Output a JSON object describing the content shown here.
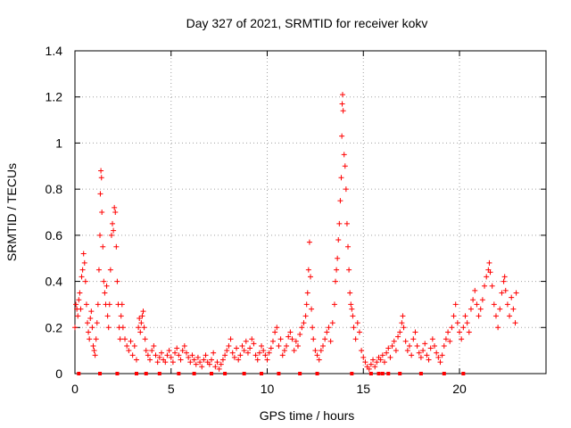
{
  "chart_data": {
    "type": "scatter",
    "title": "Day 327 of 2021, SRMTID for receiver kokv",
    "xlabel": "GPS time / hours",
    "ylabel": "SRMTID / TECUs",
    "xlim": [
      0,
      24.5
    ],
    "ylim": [
      0,
      1.4
    ],
    "xticks": [
      0,
      5,
      10,
      15,
      20
    ],
    "xtick_labels": [
      "0",
      "5",
      "10",
      "15",
      "20"
    ],
    "yticks": [
      0,
      0.2,
      0.4,
      0.6,
      0.8,
      1.0,
      1.2,
      1.4
    ],
    "ytick_labels": [
      "0",
      "0.2",
      "0.4",
      "0.6",
      "0.8",
      "1",
      "1.2",
      "1.4"
    ],
    "grid": true,
    "legend": "none",
    "marker": "plus",
    "color": "#ff0000",
    "series": [
      {
        "name": "SRMTID",
        "points": [
          [
            0.0,
            0.2
          ],
          [
            0.05,
            0.3
          ],
          [
            0.1,
            0.28
          ],
          [
            0.15,
            0.25
          ],
          [
            0.2,
            0.32
          ],
          [
            0.25,
            0.35
          ],
          [
            0.3,
            0.28
          ],
          [
            0.35,
            0.42
          ],
          [
            0.4,
            0.45
          ],
          [
            0.45,
            0.52
          ],
          [
            0.5,
            0.48
          ],
          [
            0.55,
            0.4
          ],
          [
            0.6,
            0.3
          ],
          [
            0.65,
            0.22
          ],
          [
            0.7,
            0.18
          ],
          [
            0.75,
            0.15
          ],
          [
            0.8,
            0.24
          ],
          [
            0.85,
            0.27
          ],
          [
            0.9,
            0.2
          ],
          [
            0.95,
            0.12
          ],
          [
            1.0,
            0.1
          ],
          [
            1.05,
            0.08
          ],
          [
            1.1,
            0.15
          ],
          [
            1.15,
            0.22
          ],
          [
            1.2,
            0.3
          ],
          [
            1.25,
            0.45
          ],
          [
            1.3,
            0.6
          ],
          [
            1.32,
            0.78
          ],
          [
            1.35,
            0.88
          ],
          [
            1.38,
            0.85
          ],
          [
            1.4,
            0.7
          ],
          [
            1.45,
            0.55
          ],
          [
            1.5,
            0.4
          ],
          [
            1.55,
            0.35
          ],
          [
            1.6,
            0.3
          ],
          [
            1.65,
            0.38
          ],
          [
            1.7,
            0.25
          ],
          [
            1.75,
            0.2
          ],
          [
            1.8,
            0.3
          ],
          [
            1.85,
            0.45
          ],
          [
            1.9,
            0.6
          ],
          [
            1.95,
            0.65
          ],
          [
            2.0,
            0.62
          ],
          [
            2.05,
            0.72
          ],
          [
            2.1,
            0.7
          ],
          [
            2.15,
            0.55
          ],
          [
            2.2,
            0.4
          ],
          [
            2.25,
            0.3
          ],
          [
            2.3,
            0.2
          ],
          [
            2.35,
            0.15
          ],
          [
            2.4,
            0.25
          ],
          [
            2.45,
            0.3
          ],
          [
            2.5,
            0.2
          ],
          [
            2.6,
            0.15
          ],
          [
            2.7,
            0.12
          ],
          [
            2.8,
            0.1
          ],
          [
            2.9,
            0.14
          ],
          [
            3.0,
            0.08
          ],
          [
            3.1,
            0.12
          ],
          [
            3.2,
            0.06
          ],
          [
            3.3,
            0.2
          ],
          [
            3.35,
            0.24
          ],
          [
            3.4,
            0.18
          ],
          [
            3.45,
            0.22
          ],
          [
            3.5,
            0.25
          ],
          [
            3.55,
            0.27
          ],
          [
            3.6,
            0.2
          ],
          [
            3.65,
            0.15
          ],
          [
            3.7,
            0.1
          ],
          [
            3.8,
            0.08
          ],
          [
            3.9,
            0.06
          ],
          [
            4.0,
            0.1
          ],
          [
            4.1,
            0.12
          ],
          [
            4.2,
            0.08
          ],
          [
            4.3,
            0.05
          ],
          [
            4.4,
            0.07
          ],
          [
            4.5,
            0.09
          ],
          [
            4.6,
            0.06
          ],
          [
            4.7,
            0.05
          ],
          [
            4.8,
            0.08
          ],
          [
            4.9,
            0.1
          ],
          [
            5.0,
            0.07
          ],
          [
            5.1,
            0.05
          ],
          [
            5.2,
            0.09
          ],
          [
            5.3,
            0.11
          ],
          [
            5.4,
            0.08
          ],
          [
            5.5,
            0.06
          ],
          [
            5.6,
            0.1
          ],
          [
            5.7,
            0.12
          ],
          [
            5.8,
            0.09
          ],
          [
            5.9,
            0.07
          ],
          [
            6.0,
            0.05
          ],
          [
            6.1,
            0.08
          ],
          [
            6.2,
            0.06
          ],
          [
            6.3,
            0.04
          ],
          [
            6.4,
            0.07
          ],
          [
            6.5,
            0.05
          ],
          [
            6.6,
            0.03
          ],
          [
            6.7,
            0.06
          ],
          [
            6.8,
            0.08
          ],
          [
            6.9,
            0.05
          ],
          [
            7.0,
            0.04
          ],
          [
            7.1,
            0.06
          ],
          [
            7.2,
            0.09
          ],
          [
            7.3,
            0.03
          ],
          [
            7.4,
            0.05
          ],
          [
            7.5,
            0.02
          ],
          [
            7.6,
            0.04
          ],
          [
            7.7,
            0.06
          ],
          [
            7.8,
            0.08
          ],
          [
            7.9,
            0.1
          ],
          [
            8.0,
            0.12
          ],
          [
            8.1,
            0.15
          ],
          [
            8.2,
            0.09
          ],
          [
            8.3,
            0.07
          ],
          [
            8.4,
            0.11
          ],
          [
            8.5,
            0.06
          ],
          [
            8.6,
            0.08
          ],
          [
            8.7,
            0.12
          ],
          [
            8.8,
            0.1
          ],
          [
            8.9,
            0.14
          ],
          [
            9.0,
            0.09
          ],
          [
            9.1,
            0.11
          ],
          [
            9.2,
            0.15
          ],
          [
            9.3,
            0.13
          ],
          [
            9.4,
            0.08
          ],
          [
            9.5,
            0.06
          ],
          [
            9.6,
            0.09
          ],
          [
            9.7,
            0.12
          ],
          [
            9.8,
            0.1
          ],
          [
            9.9,
            0.08
          ],
          [
            10.0,
            0.06
          ],
          [
            10.1,
            0.09
          ],
          [
            10.2,
            0.11
          ],
          [
            10.3,
            0.14
          ],
          [
            10.4,
            0.18
          ],
          [
            10.5,
            0.2
          ],
          [
            10.6,
            0.12
          ],
          [
            10.7,
            0.15
          ],
          [
            10.8,
            0.08
          ],
          [
            10.9,
            0.1
          ],
          [
            11.0,
            0.12
          ],
          [
            11.1,
            0.16
          ],
          [
            11.2,
            0.18
          ],
          [
            11.3,
            0.15
          ],
          [
            11.4,
            0.1
          ],
          [
            11.5,
            0.14
          ],
          [
            11.6,
            0.12
          ],
          [
            11.7,
            0.17
          ],
          [
            11.8,
            0.2
          ],
          [
            11.9,
            0.22
          ],
          [
            12.0,
            0.25
          ],
          [
            12.05,
            0.3
          ],
          [
            12.1,
            0.35
          ],
          [
            12.15,
            0.45
          ],
          [
            12.2,
            0.57
          ],
          [
            12.25,
            0.42
          ],
          [
            12.3,
            0.28
          ],
          [
            12.35,
            0.2
          ],
          [
            12.4,
            0.15
          ],
          [
            12.5,
            0.1
          ],
          [
            12.6,
            0.08
          ],
          [
            12.7,
            0.06
          ],
          [
            12.8,
            0.1
          ],
          [
            12.9,
            0.12
          ],
          [
            13.0,
            0.15
          ],
          [
            13.1,
            0.18
          ],
          [
            13.2,
            0.2
          ],
          [
            13.3,
            0.14
          ],
          [
            13.4,
            0.22
          ],
          [
            13.5,
            0.3
          ],
          [
            13.55,
            0.4
          ],
          [
            13.6,
            0.45
          ],
          [
            13.65,
            0.5
          ],
          [
            13.7,
            0.58
          ],
          [
            13.75,
            0.65
          ],
          [
            13.8,
            0.75
          ],
          [
            13.85,
            0.85
          ],
          [
            13.88,
            1.03
          ],
          [
            13.9,
            1.17
          ],
          [
            13.92,
            1.21
          ],
          [
            13.95,
            1.14
          ],
          [
            14.0,
            0.95
          ],
          [
            14.05,
            0.9
          ],
          [
            14.1,
            0.8
          ],
          [
            14.15,
            0.65
          ],
          [
            14.2,
            0.55
          ],
          [
            14.25,
            0.45
          ],
          [
            14.3,
            0.35
          ],
          [
            14.35,
            0.3
          ],
          [
            14.4,
            0.28
          ],
          [
            14.45,
            0.25
          ],
          [
            14.5,
            0.2
          ],
          [
            14.6,
            0.15
          ],
          [
            14.7,
            0.22
          ],
          [
            14.8,
            0.18
          ],
          [
            14.9,
            0.1
          ],
          [
            15.0,
            0.07
          ],
          [
            15.1,
            0.05
          ],
          [
            15.2,
            0.03
          ],
          [
            15.3,
            0.02
          ],
          [
            15.4,
            0.04
          ],
          [
            15.5,
            0.06
          ],
          [
            15.6,
            0.03
          ],
          [
            15.7,
            0.05
          ],
          [
            15.8,
            0.07
          ],
          [
            15.9,
            0.06
          ],
          [
            16.0,
            0.08
          ],
          [
            16.1,
            0.05
          ],
          [
            16.2,
            0.09
          ],
          [
            16.3,
            0.11
          ],
          [
            16.4,
            0.07
          ],
          [
            16.5,
            0.12
          ],
          [
            16.6,
            0.14
          ],
          [
            16.7,
            0.1
          ],
          [
            16.8,
            0.16
          ],
          [
            16.9,
            0.18
          ],
          [
            17.0,
            0.22
          ],
          [
            17.05,
            0.25
          ],
          [
            17.1,
            0.2
          ],
          [
            17.2,
            0.14
          ],
          [
            17.3,
            0.1
          ],
          [
            17.4,
            0.12
          ],
          [
            17.5,
            0.08
          ],
          [
            17.6,
            0.15
          ],
          [
            17.7,
            0.18
          ],
          [
            17.8,
            0.12
          ],
          [
            17.9,
            0.09
          ],
          [
            18.0,
            0.07
          ],
          [
            18.1,
            0.1
          ],
          [
            18.2,
            0.13
          ],
          [
            18.3,
            0.08
          ],
          [
            18.4,
            0.06
          ],
          [
            18.5,
            0.11
          ],
          [
            18.6,
            0.15
          ],
          [
            18.7,
            0.12
          ],
          [
            18.8,
            0.09
          ],
          [
            18.9,
            0.07
          ],
          [
            19.0,
            0.05
          ],
          [
            19.1,
            0.08
          ],
          [
            19.2,
            0.12
          ],
          [
            19.3,
            0.15
          ],
          [
            19.4,
            0.18
          ],
          [
            19.5,
            0.14
          ],
          [
            19.6,
            0.2
          ],
          [
            19.7,
            0.25
          ],
          [
            19.8,
            0.3
          ],
          [
            19.9,
            0.22
          ],
          [
            20.0,
            0.18
          ],
          [
            20.1,
            0.15
          ],
          [
            20.2,
            0.2
          ],
          [
            20.3,
            0.25
          ],
          [
            20.4,
            0.22
          ],
          [
            20.5,
            0.18
          ],
          [
            20.6,
            0.28
          ],
          [
            20.7,
            0.32
          ],
          [
            20.8,
            0.36
          ],
          [
            20.9,
            0.3
          ],
          [
            21.0,
            0.25
          ],
          [
            21.1,
            0.28
          ],
          [
            21.2,
            0.32
          ],
          [
            21.3,
            0.38
          ],
          [
            21.4,
            0.42
          ],
          [
            21.5,
            0.45
          ],
          [
            21.55,
            0.48
          ],
          [
            21.6,
            0.44
          ],
          [
            21.7,
            0.38
          ],
          [
            21.8,
            0.3
          ],
          [
            21.9,
            0.25
          ],
          [
            22.0,
            0.2
          ],
          [
            22.1,
            0.28
          ],
          [
            22.2,
            0.35
          ],
          [
            22.3,
            0.4
          ],
          [
            22.35,
            0.42
          ],
          [
            22.4,
            0.36
          ],
          [
            22.5,
            0.3
          ],
          [
            22.6,
            0.25
          ],
          [
            22.7,
            0.33
          ],
          [
            22.8,
            0.28
          ],
          [
            22.9,
            0.22
          ],
          [
            22.95,
            0.35
          ]
        ]
      }
    ],
    "gap_markers_x": [
      0.2,
      1.3,
      2.2,
      3.2,
      3.7,
      4.4,
      5.4,
      6.2,
      7.1,
      7.8,
      8.8,
      9.7,
      10.6,
      11.7,
      12.6,
      14.4,
      15.4,
      15.8,
      16.0,
      16.3,
      16.9,
      18.0,
      19.2,
      20.2
    ]
  }
}
